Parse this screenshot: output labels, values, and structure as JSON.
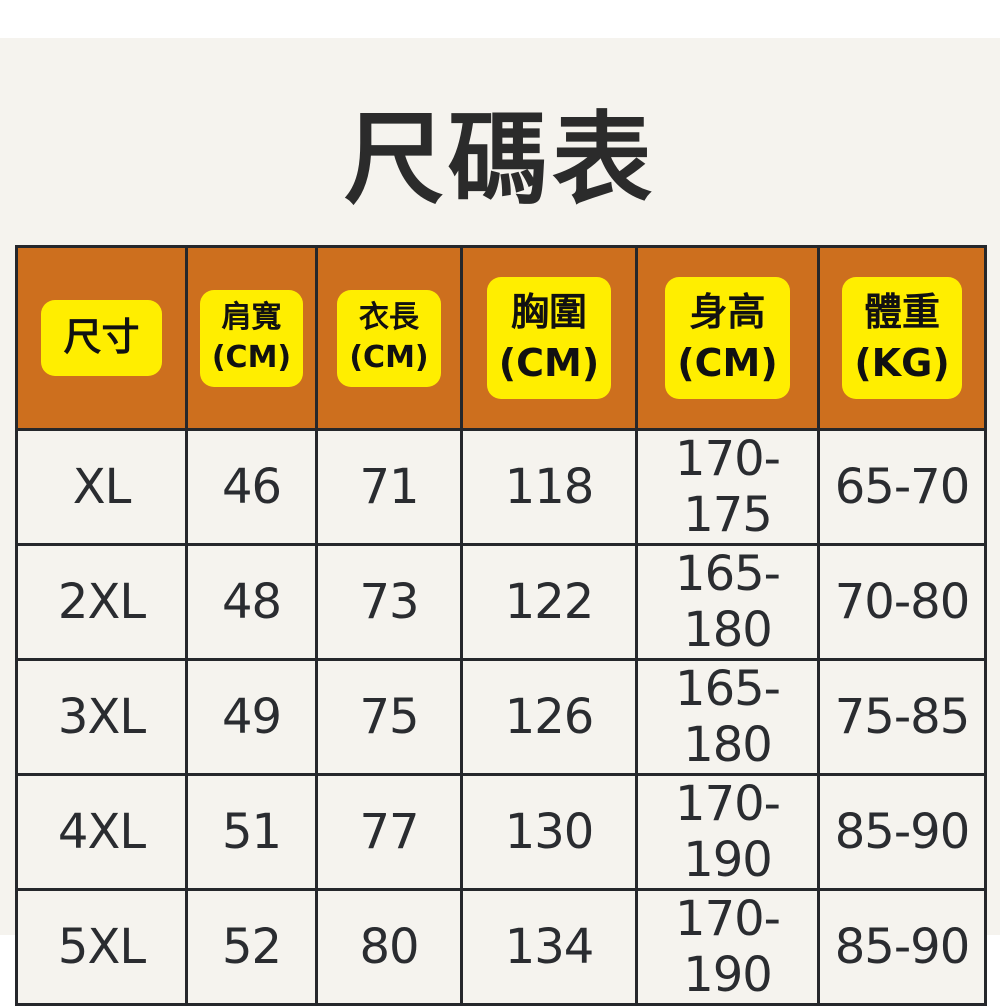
{
  "title": "尺碼表",
  "colors": {
    "header_bg": "#cd6f1e",
    "label_bg": "#ffee00",
    "cell_bg": "#f5f3ee",
    "border": "#25272b"
  },
  "headers": [
    {
      "name": "尺寸",
      "unit": ""
    },
    {
      "name": "肩寬",
      "unit": "(CM)"
    },
    {
      "name": "衣長",
      "unit": "(CM)"
    },
    {
      "name": "胸圍",
      "unit": "(CM)"
    },
    {
      "name": "身高",
      "unit": "(CM)"
    },
    {
      "name": "體重",
      "unit": "(KG)"
    }
  ],
  "rows": [
    [
      "XL",
      "46",
      "71",
      "118",
      "170-175",
      "65-70"
    ],
    [
      "2XL",
      "48",
      "73",
      "122",
      "165-180",
      "70-80"
    ],
    [
      "3XL",
      "49",
      "75",
      "126",
      "165-180",
      "75-85"
    ],
    [
      "4XL",
      "51",
      "77",
      "130",
      "170-190",
      "85-90"
    ],
    [
      "5XL",
      "52",
      "80",
      "134",
      "170-190",
      "85-90"
    ]
  ]
}
